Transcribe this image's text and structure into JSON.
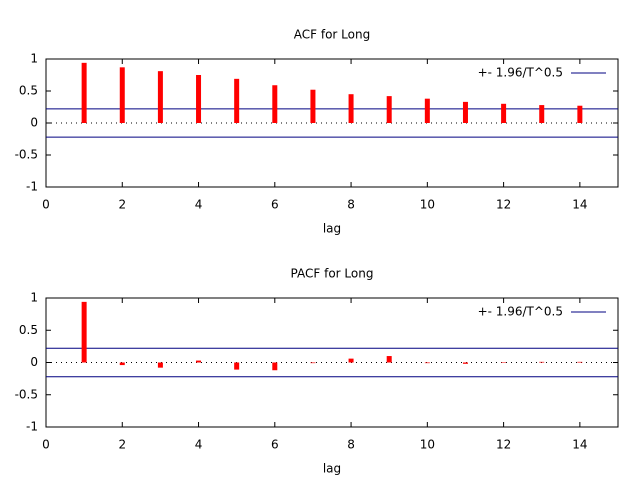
{
  "chart_data": [
    {
      "type": "bar",
      "title": "ACF for Long",
      "xlabel": "lag",
      "x": [
        1,
        2,
        3,
        4,
        5,
        6,
        7,
        8,
        9,
        10,
        11,
        12,
        13,
        14
      ],
      "values": [
        0.94,
        0.87,
        0.81,
        0.75,
        0.69,
        0.59,
        0.52,
        0.45,
        0.42,
        0.38,
        0.33,
        0.3,
        0.28,
        0.27
      ],
      "color": "#ff0000",
      "band": {
        "name": "+- 1.96/T^0.5",
        "color": "#000080",
        "values": [
          0.22,
          -0.22
        ]
      },
      "xlim": [
        0,
        15
      ],
      "xticks": [
        0,
        2,
        4,
        6,
        8,
        10,
        12,
        14
      ],
      "ylim": [
        -1,
        1
      ],
      "yticks": [
        -1,
        -0.5,
        0,
        0.5,
        1
      ],
      "legend": "top-right"
    },
    {
      "type": "bar",
      "title": "PACF for Long",
      "xlabel": "lag",
      "x": [
        1,
        2,
        3,
        4,
        5,
        6,
        7,
        8,
        9,
        10,
        11,
        12,
        13,
        14
      ],
      "values": [
        0.94,
        -0.04,
        -0.08,
        0.03,
        -0.11,
        -0.12,
        -0.01,
        0.06,
        0.1,
        -0.01,
        -0.02,
        0,
        0.01,
        0.01
      ],
      "color": "#ff0000",
      "band": {
        "name": "+- 1.96/T^0.5",
        "color": "#000080",
        "values": [
          0.22,
          -0.22
        ]
      },
      "xlim": [
        0,
        15
      ],
      "xticks": [
        0,
        2,
        4,
        6,
        8,
        10,
        12,
        14
      ],
      "ylim": [
        -1,
        1
      ],
      "yticks": [
        -1,
        -0.5,
        0,
        0.5,
        1
      ],
      "legend": "top-right"
    }
  ]
}
